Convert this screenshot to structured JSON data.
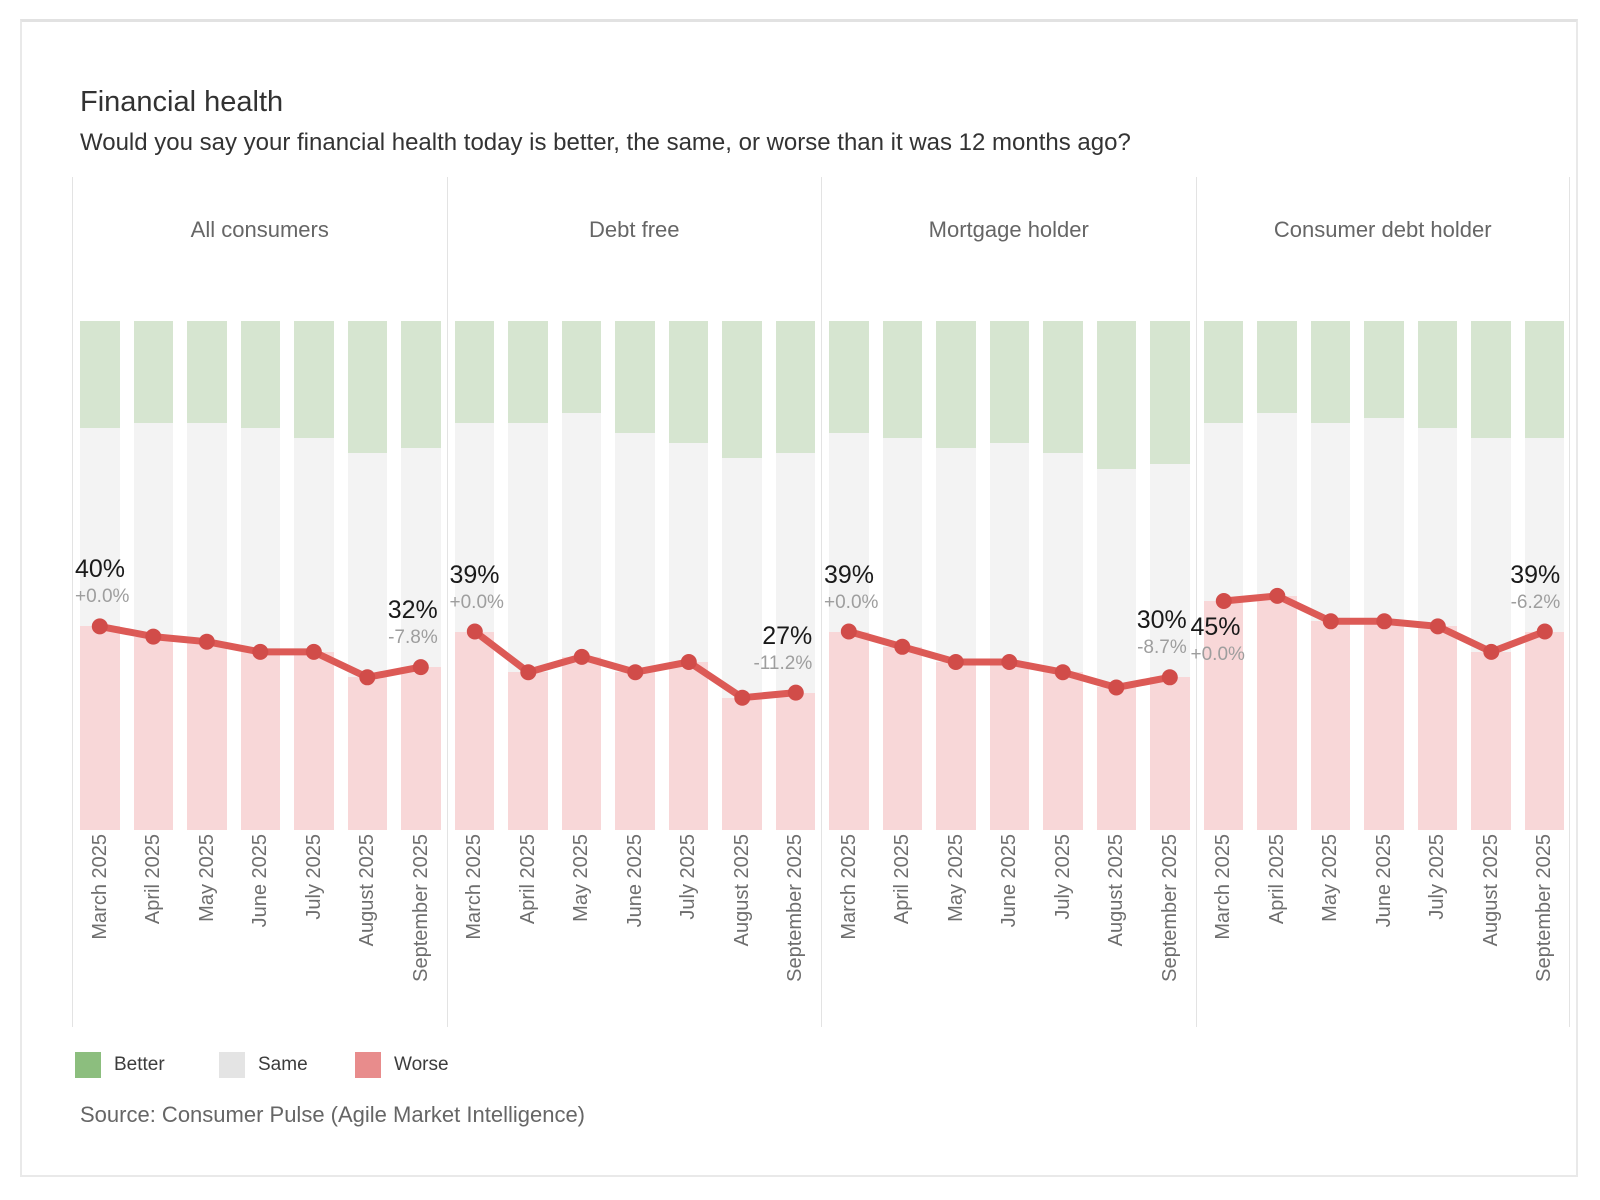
{
  "title": "Financial health",
  "subtitle": "Would you say your financial health today is better, the same, or worse than it was 12 months ago?",
  "source": "Source: Consumer Pulse (Agile Market Intelligence)",
  "legend": {
    "items": [
      {
        "name": "better",
        "label": "Better"
      },
      {
        "name": "same",
        "label": "Same"
      },
      {
        "name": "worse",
        "label": "Worse"
      }
    ]
  },
  "colors": {
    "better_bar": "#D6E5D0",
    "same_bar": "#F3F3F3",
    "worse_bar": "#F8D7D8",
    "legend_better": "#8CBE7E",
    "legend_same": "#E4E4E4",
    "legend_worse": "#E88C8C",
    "line": "#DC5A56",
    "dot": "#D14C49",
    "title_text": "#323232",
    "header_text": "#666666",
    "axis_text": "#6E6E6E",
    "value_text": "#1A1A1A",
    "change_text": "#9E9E9E",
    "divider": "#E3E3E3"
  },
  "chart_data": {
    "type": "bar",
    "subtype": "100%-stacked-bars-with-line-overlay",
    "categories": [
      "March 2025",
      "April 2025",
      "May 2025",
      "June 2025",
      "July 2025",
      "August 2025",
      "September 2025"
    ],
    "stack_order": [
      "Better",
      "Same",
      "Worse"
    ],
    "ylim": [
      0,
      100
    ],
    "grid": false,
    "legend_position": "bottom-left",
    "panels": [
      {
        "label": "All consumers",
        "series": [
          {
            "name": "Better",
            "values": [
              21,
              20,
              20,
              21,
              23,
              26,
              25
            ]
          },
          {
            "name": "Same",
            "values": [
              39,
              42,
              43,
              44,
              42,
              44,
              43
            ]
          },
          {
            "name": "Worse",
            "values": [
              40,
              38,
              37,
              35,
              35,
              30,
              32
            ]
          }
        ],
        "line": {
          "name": "Worse",
          "values": [
            40,
            38,
            37,
            35,
            35,
            30,
            32
          ]
        },
        "first_point_label": {
          "value": "40%",
          "change": "+0.0%"
        },
        "last_point_label": {
          "value": "32%",
          "change": "-7.8%"
        }
      },
      {
        "label": "Debt free",
        "series": [
          {
            "name": "Better",
            "values": [
              20,
              20,
              18,
              22,
              24,
              27,
              26
            ]
          },
          {
            "name": "Same",
            "values": [
              41,
              49,
              48,
              47,
              43,
              47,
              47
            ]
          },
          {
            "name": "Worse",
            "values": [
              39,
              31,
              34,
              31,
              33,
              26,
              27
            ]
          }
        ],
        "line": {
          "name": "Worse",
          "values": [
            39,
            31,
            34,
            31,
            33,
            26,
            27
          ]
        },
        "first_point_label": {
          "value": "39%",
          "change": "+0.0%"
        },
        "last_point_label": {
          "value": "27%",
          "change": "-11.2%"
        }
      },
      {
        "label": "Mortgage holder",
        "series": [
          {
            "name": "Better",
            "values": [
              22,
              23,
              25,
              24,
              26,
              29,
              28
            ]
          },
          {
            "name": "Same",
            "values": [
              39,
              41,
              42,
              43,
              43,
              43,
              42
            ]
          },
          {
            "name": "Worse",
            "values": [
              39,
              36,
              33,
              33,
              31,
              28,
              30
            ]
          }
        ],
        "line": {
          "name": "Worse",
          "values": [
            39,
            36,
            33,
            33,
            31,
            28,
            30
          ]
        },
        "first_point_label": {
          "value": "39%",
          "change": "+0.0%"
        },
        "last_point_label": {
          "value": "30%",
          "change": "-8.7%"
        }
      },
      {
        "label": "Consumer debt holder",
        "series": [
          {
            "name": "Better",
            "values": [
              20,
              18,
              20,
              19,
              21,
              23,
              23
            ]
          },
          {
            "name": "Same",
            "values": [
              35,
              36,
              39,
              40,
              39,
              42,
              38
            ]
          },
          {
            "name": "Worse",
            "values": [
              45,
              46,
              41,
              41,
              40,
              35,
              39
            ]
          }
        ],
        "line": {
          "name": "Worse",
          "values": [
            45,
            46,
            41,
            41,
            40,
            35,
            39
          ]
        },
        "first_point_label": {
          "value": "45%",
          "change": "+0.0%"
        },
        "last_point_label": {
          "value": "39%",
          "change": "-6.2%"
        }
      }
    ]
  }
}
